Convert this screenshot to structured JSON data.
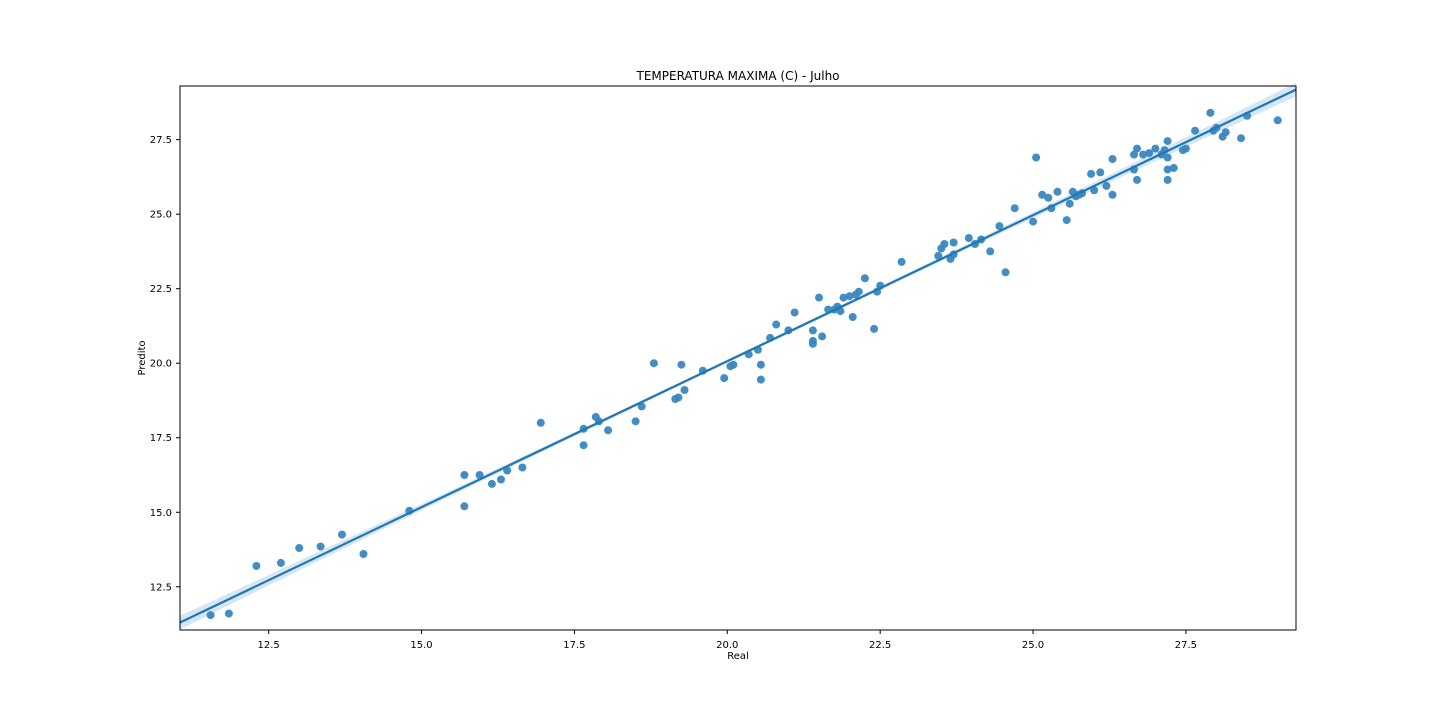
{
  "chart_data": {
    "type": "scatter",
    "title": "TEMPERATURA MAXIMA (C) - Julho",
    "xlabel": "Real",
    "ylabel": "Predito",
    "xlim": [
      11.05,
      29.3
    ],
    "ylim": [
      11.05,
      29.3
    ],
    "xticks": [
      12.5,
      15.0,
      17.5,
      20.0,
      22.5,
      25.0,
      27.5
    ],
    "yticks": [
      12.5,
      15.0,
      17.5,
      20.0,
      22.5,
      25.0,
      27.5
    ],
    "grid": false,
    "colors": {
      "points": "#3a87c0",
      "line": "#1f77b4",
      "band": "#c6dcef"
    },
    "regression": {
      "x": [
        11.05,
        29.3
      ],
      "y": [
        11.3,
        29.18
      ]
    },
    "points": [
      [
        11.55,
        11.55
      ],
      [
        11.85,
        11.6
      ],
      [
        12.3,
        13.2
      ],
      [
        12.7,
        13.3
      ],
      [
        13.0,
        13.8
      ],
      [
        13.35,
        13.85
      ],
      [
        13.7,
        14.25
      ],
      [
        14.05,
        13.6
      ],
      [
        14.8,
        15.05
      ],
      [
        15.7,
        16.25
      ],
      [
        15.7,
        15.2
      ],
      [
        15.95,
        16.25
      ],
      [
        16.15,
        15.95
      ],
      [
        16.3,
        16.1
      ],
      [
        16.4,
        16.4
      ],
      [
        16.65,
        16.5
      ],
      [
        16.95,
        18.0
      ],
      [
        17.65,
        17.8
      ],
      [
        17.65,
        17.25
      ],
      [
        17.85,
        18.2
      ],
      [
        17.9,
        18.05
      ],
      [
        18.05,
        17.75
      ],
      [
        18.5,
        18.05
      ],
      [
        18.6,
        18.55
      ],
      [
        18.8,
        20.0
      ],
      [
        19.15,
        18.8
      ],
      [
        19.2,
        18.85
      ],
      [
        19.25,
        19.95
      ],
      [
        19.3,
        19.1
      ],
      [
        19.6,
        19.75
      ],
      [
        19.95,
        19.5
      ],
      [
        20.05,
        19.9
      ],
      [
        20.1,
        19.95
      ],
      [
        20.35,
        20.3
      ],
      [
        20.5,
        20.45
      ],
      [
        20.55,
        19.95
      ],
      [
        20.55,
        19.45
      ],
      [
        20.7,
        20.85
      ],
      [
        20.8,
        21.3
      ],
      [
        21.0,
        21.1
      ],
      [
        21.1,
        21.7
      ],
      [
        21.4,
        20.75
      ],
      [
        21.4,
        20.65
      ],
      [
        21.4,
        21.1
      ],
      [
        21.5,
        22.2
      ],
      [
        21.55,
        20.9
      ],
      [
        21.65,
        21.8
      ],
      [
        21.75,
        21.8
      ],
      [
        21.8,
        21.9
      ],
      [
        21.85,
        21.75
      ],
      [
        21.9,
        22.2
      ],
      [
        22.0,
        22.25
      ],
      [
        22.05,
        21.55
      ],
      [
        22.1,
        22.3
      ],
      [
        22.15,
        22.4
      ],
      [
        22.25,
        22.85
      ],
      [
        22.4,
        21.15
      ],
      [
        22.45,
        22.4
      ],
      [
        22.5,
        22.6
      ],
      [
        22.85,
        23.4
      ],
      [
        23.45,
        23.6
      ],
      [
        23.5,
        23.85
      ],
      [
        23.55,
        24.0
      ],
      [
        23.65,
        23.5
      ],
      [
        23.7,
        23.65
      ],
      [
        23.7,
        24.05
      ],
      [
        23.95,
        24.2
      ],
      [
        24.05,
        24.0
      ],
      [
        24.15,
        24.15
      ],
      [
        24.3,
        23.75
      ],
      [
        24.45,
        24.6
      ],
      [
        24.55,
        23.05
      ],
      [
        24.7,
        25.2
      ],
      [
        25.0,
        24.75
      ],
      [
        25.05,
        26.9
      ],
      [
        25.15,
        25.65
      ],
      [
        25.25,
        25.55
      ],
      [
        25.3,
        25.2
      ],
      [
        25.4,
        25.75
      ],
      [
        25.55,
        24.8
      ],
      [
        25.6,
        25.35
      ],
      [
        25.65,
        25.75
      ],
      [
        25.7,
        25.6
      ],
      [
        25.75,
        25.65
      ],
      [
        25.8,
        25.7
      ],
      [
        25.95,
        26.35
      ],
      [
        26.0,
        25.8
      ],
      [
        26.1,
        26.4
      ],
      [
        26.2,
        25.95
      ],
      [
        26.3,
        26.85
      ],
      [
        26.3,
        25.65
      ],
      [
        26.65,
        26.5
      ],
      [
        26.65,
        27.0
      ],
      [
        26.7,
        27.2
      ],
      [
        26.7,
        26.15
      ],
      [
        26.8,
        27.0
      ],
      [
        26.9,
        27.05
      ],
      [
        27.0,
        27.2
      ],
      [
        27.1,
        27.0
      ],
      [
        27.15,
        27.15
      ],
      [
        27.2,
        26.9
      ],
      [
        27.2,
        27.45
      ],
      [
        27.2,
        26.5
      ],
      [
        27.2,
        26.15
      ],
      [
        27.3,
        26.55
      ],
      [
        27.45,
        27.15
      ],
      [
        27.5,
        27.2
      ],
      [
        27.65,
        27.8
      ],
      [
        27.9,
        28.4
      ],
      [
        27.95,
        27.8
      ],
      [
        28.0,
        27.9
      ],
      [
        28.1,
        27.6
      ],
      [
        28.15,
        27.75
      ],
      [
        28.4,
        27.55
      ],
      [
        28.5,
        28.3
      ],
      [
        29.0,
        28.15
      ]
    ]
  }
}
